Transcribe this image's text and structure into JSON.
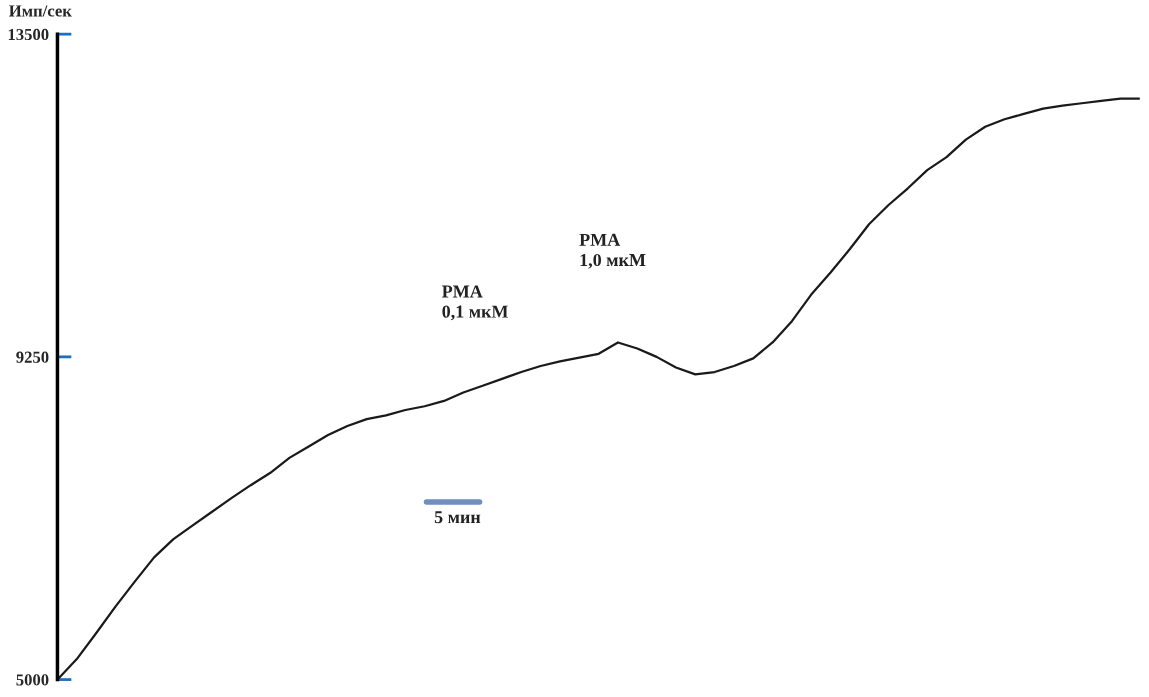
{
  "chart_data": {
    "type": "line",
    "ylabel": "Имп/сек",
    "categories": [
      null,
      null,
      null,
      null,
      null,
      null,
      null,
      null,
      null,
      null,
      null,
      null,
      null,
      null,
      null,
      null,
      null,
      null,
      null,
      null,
      null,
      null,
      null,
      null,
      null,
      null,
      null,
      null,
      null,
      null,
      null,
      null,
      null,
      null,
      null,
      null,
      null,
      null,
      null,
      null,
      null,
      null,
      null,
      null,
      null,
      null,
      null,
      null,
      null,
      null,
      null,
      null,
      null,
      null,
      null,
      null,
      null
    ],
    "series": [
      {
        "color": "#1a1a1a",
        "values": [
          5000,
          5270,
          5610,
          5960,
          6290,
          6610,
          6850,
          7030,
          7210,
          7390,
          7560,
          7720,
          7920,
          8070,
          8220,
          8340,
          8430,
          8480,
          8550,
          8600,
          8670,
          8780,
          8870,
          8960,
          9050,
          9130,
          9190,
          9240,
          9290,
          9440,
          9360,
          9250,
          9110,
          9020,
          9050,
          9130,
          9230,
          9440,
          9720,
          10070,
          10360,
          10670,
          11000,
          11250,
          11470,
          11710,
          11880,
          12110,
          12280,
          12380,
          12450,
          12520,
          12560,
          12590,
          12620,
          12650,
          12650
        ]
      }
    ],
    "ylim": [
      5000,
      13500
    ],
    "yticks": [
      5000,
      9250,
      13500
    ],
    "tick_labels": "y",
    "grid": false,
    "legend": false,
    "annotations": [
      "PMA\n0,1 мкМ",
      "PMA\n1,0 мкМ",
      "5 мин"
    ]
  }
}
